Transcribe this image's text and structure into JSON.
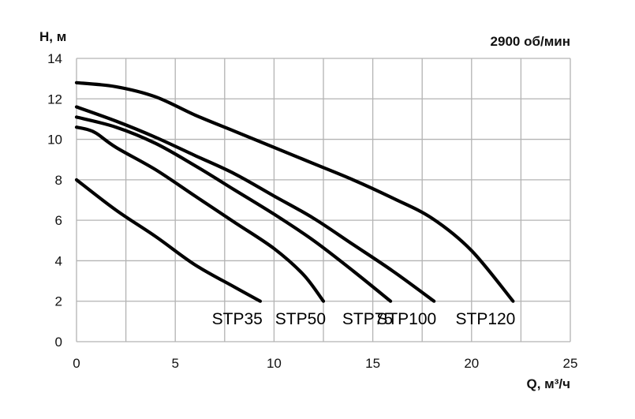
{
  "chart_data": {
    "type": "line",
    "title": "",
    "subtitle": "2900 об/мин",
    "xlabel": "Q, м³/ч",
    "ylabel": "H, м",
    "xlim": [
      0,
      25
    ],
    "ylim": [
      0,
      14
    ],
    "x_ticks": [
      0,
      5,
      10,
      15,
      20,
      25
    ],
    "y_ticks": [
      0,
      2,
      4,
      6,
      8,
      10,
      12,
      14
    ],
    "grid": true,
    "legend": "labels at curve ends, below the curves",
    "series": [
      {
        "name": "STP35",
        "points": [
          [
            0,
            8.0
          ],
          [
            2,
            6.5
          ],
          [
            4,
            5.2
          ],
          [
            6,
            3.8
          ],
          [
            8,
            2.7
          ],
          [
            9.3,
            2.0
          ]
        ]
      },
      {
        "name": "STP50",
        "points": [
          [
            0,
            10.6
          ],
          [
            0.5,
            10.5
          ],
          [
            1,
            10.3
          ],
          [
            2,
            9.6
          ],
          [
            4,
            8.5
          ],
          [
            6,
            7.2
          ],
          [
            8,
            5.9
          ],
          [
            10,
            4.6
          ],
          [
            11.5,
            3.3
          ],
          [
            12.5,
            2.0
          ]
        ]
      },
      {
        "name": "STP75",
        "points": [
          [
            0,
            11.1
          ],
          [
            2,
            10.6
          ],
          [
            4,
            9.8
          ],
          [
            6,
            8.7
          ],
          [
            8,
            7.5
          ],
          [
            10,
            6.3
          ],
          [
            12,
            5.0
          ],
          [
            14,
            3.5
          ],
          [
            15.9,
            2.0
          ]
        ]
      },
      {
        "name": "STP100",
        "points": [
          [
            0,
            11.6
          ],
          [
            2,
            10.9
          ],
          [
            4,
            10.1
          ],
          [
            6,
            9.2
          ],
          [
            8,
            8.3
          ],
          [
            10,
            7.2
          ],
          [
            12,
            6.1
          ],
          [
            14,
            4.8
          ],
          [
            16,
            3.5
          ],
          [
            18.1,
            2.0
          ]
        ]
      },
      {
        "name": "STP120",
        "points": [
          [
            0,
            12.8
          ],
          [
            2,
            12.6
          ],
          [
            4,
            12.1
          ],
          [
            6,
            11.2
          ],
          [
            8,
            10.4
          ],
          [
            10,
            9.6
          ],
          [
            12,
            8.8
          ],
          [
            14,
            8.0
          ],
          [
            16,
            7.1
          ],
          [
            18,
            6.1
          ],
          [
            20,
            4.5
          ],
          [
            22.1,
            2.0
          ]
        ]
      }
    ],
    "series_labels": [
      "STP35",
      "STP50",
      "STP75",
      "STP100",
      "STP120"
    ]
  }
}
